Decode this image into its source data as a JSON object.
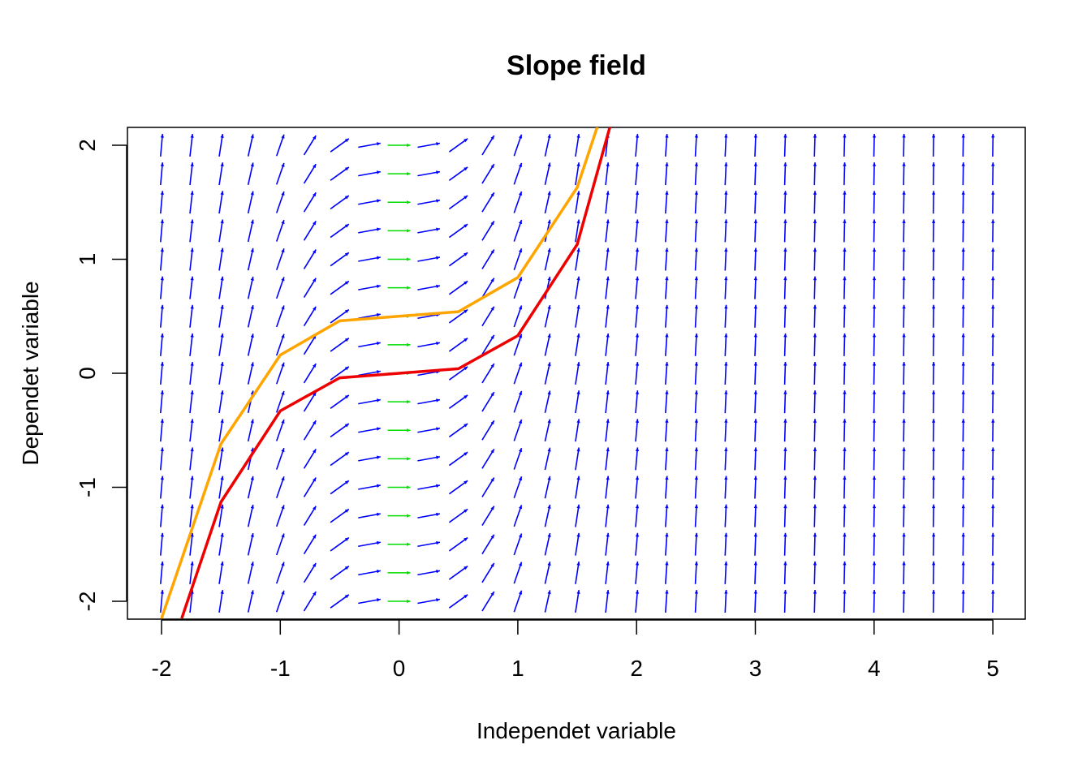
{
  "chart_data": {
    "type": "line",
    "title": "Slope field",
    "xlabel": "Independet variable",
    "ylabel": "Dependet variable",
    "xlim": [
      -2.1,
      5.3
    ],
    "ylim": [
      -2.15,
      2.15
    ],
    "x_ticks": [
      "-2",
      "-1",
      "0",
      "1",
      "2",
      "3",
      "4",
      "5"
    ],
    "y_ticks": [
      "-2",
      "-1",
      "0",
      "1",
      "2"
    ],
    "grid": false,
    "slope_field": {
      "x_start": -2.0,
      "x_step": 0.25,
      "x_count": 29,
      "y_start": -2.0,
      "y_step": 0.25,
      "y_count": 17,
      "arrow_color": "#0000ff",
      "zero_slope_color": "#00dd00"
    },
    "series": [
      {
        "color": "#ffa500",
        "x": [
          -2.0,
          -1.5,
          -1.0,
          -0.5,
          0.5,
          1.0,
          1.5,
          2.0
        ],
        "y": [
          -2.15,
          -0.62,
          0.16,
          0.46,
          0.54,
          0.84,
          1.63,
          3.2
        ]
      },
      {
        "color": "#ee0000",
        "x": [
          -1.83,
          -1.5,
          -1.0,
          -0.5,
          0.0,
          0.5,
          1.0,
          1.5,
          2.0
        ],
        "y": [
          -2.15,
          -1.13,
          -0.33,
          -0.04,
          0.0,
          0.04,
          0.33,
          1.13,
          3.0
        ]
      }
    ]
  }
}
